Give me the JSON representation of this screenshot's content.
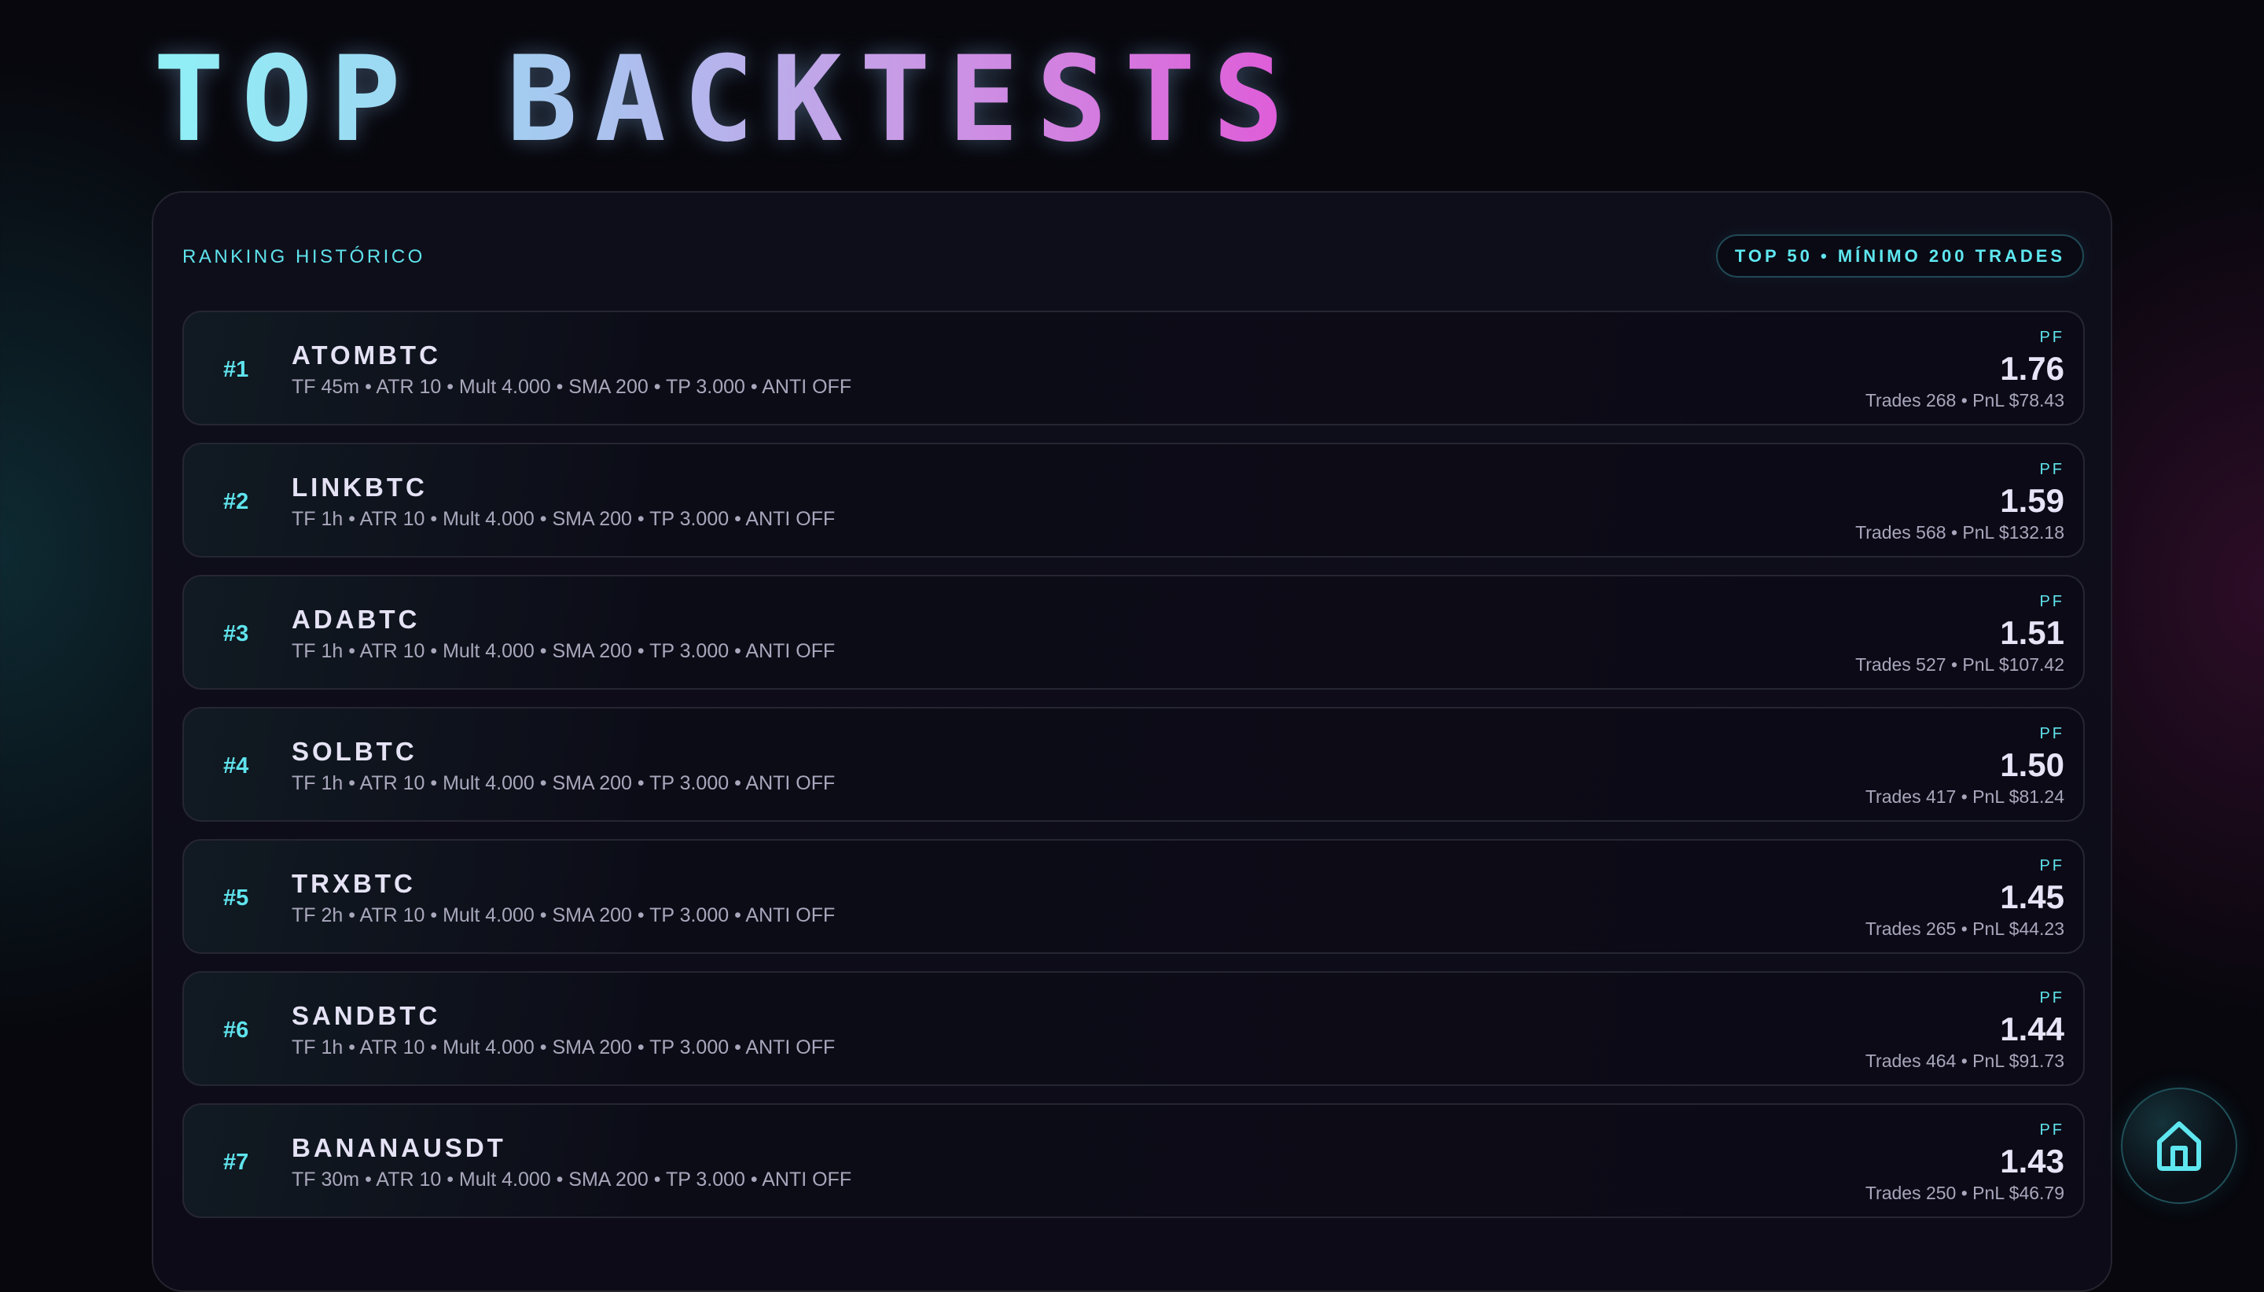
{
  "title": "TOP BACKTESTS",
  "panel": {
    "label": "RANKING HISTÓRICO",
    "badge": "TOP 50 • MÍNIMO 200 TRADES"
  },
  "pf_label": "PF",
  "rows": [
    {
      "rank": "#1",
      "symbol": "ATOMBTC",
      "params": "TF 45m • ATR 10 • Mult 4.000 • SMA 200 • TP 3.000 • ANTI OFF",
      "pf": "1.76",
      "stats": "Trades 268 • PnL $78.43"
    },
    {
      "rank": "#2",
      "symbol": "LINKBTC",
      "params": "TF 1h • ATR 10 • Mult 4.000 • SMA 200 • TP 3.000 • ANTI OFF",
      "pf": "1.59",
      "stats": "Trades 568 • PnL $132.18"
    },
    {
      "rank": "#3",
      "symbol": "ADABTC",
      "params": "TF 1h • ATR 10 • Mult 4.000 • SMA 200 • TP 3.000 • ANTI OFF",
      "pf": "1.51",
      "stats": "Trades 527 • PnL $107.42"
    },
    {
      "rank": "#4",
      "symbol": "SOLBTC",
      "params": "TF 1h • ATR 10 • Mult 4.000 • SMA 200 • TP 3.000 • ANTI OFF",
      "pf": "1.50",
      "stats": "Trades 417 • PnL $81.24"
    },
    {
      "rank": "#5",
      "symbol": "TRXBTC",
      "params": "TF 2h • ATR 10 • Mult 4.000 • SMA 200 • TP 3.000 • ANTI OFF",
      "pf": "1.45",
      "stats": "Trades 265 • PnL $44.23"
    },
    {
      "rank": "#6",
      "symbol": "SANDBTC",
      "params": "TF 1h • ATR 10 • Mult 4.000 • SMA 200 • TP 3.000 • ANTI OFF",
      "pf": "1.44",
      "stats": "Trades 464 • PnL $91.73"
    },
    {
      "rank": "#7",
      "symbol": "BANANAUSDT",
      "params": "TF 30m • ATR 10 • Mult 4.000 • SMA 200 • TP 3.000 • ANTI OFF",
      "pf": "1.43",
      "stats": "Trades 250 • PnL $46.79"
    }
  ],
  "home_button": {
    "icon": "home-icon"
  },
  "colors": {
    "accent": "#5fe3ec",
    "title_gradient_start": "#8ff1f6",
    "title_gradient_end": "#e05ad8",
    "background": "#07070d"
  }
}
